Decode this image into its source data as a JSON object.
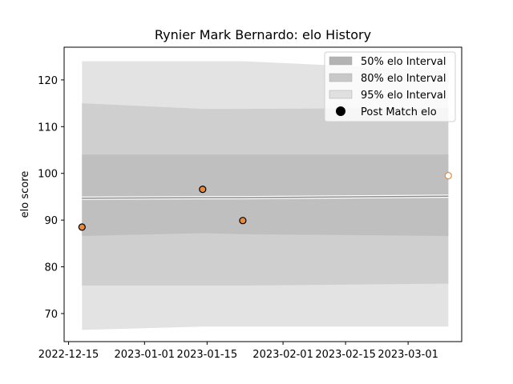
{
  "chart_data": {
    "type": "line",
    "title": "Rynier Mark Bernardo: elo History",
    "xlabel": "",
    "ylabel": "elo score",
    "x_ticks": [
      "2022-12-15",
      "2023-01-01",
      "2023-01-15",
      "2023-02-01",
      "2023-02-15",
      "2023-03-01"
    ],
    "y_ticks": [
      70,
      80,
      90,
      100,
      110,
      120
    ],
    "xlim": [
      "2022-12-14",
      "2023-03-13"
    ],
    "ylim": [
      64,
      127
    ],
    "grid": false,
    "legend_position": "top-right",
    "band_dates": [
      "2022-12-18",
      "2023-01-14",
      "2023-01-23",
      "2023-03-10"
    ],
    "median_line": [
      94.7,
      94.8,
      94.8,
      95.1
    ],
    "intervals": [
      {
        "name": "95% elo Interval",
        "color": "#e3e3e3",
        "lower": [
          66.5,
          67.2,
          67.2,
          67.2
        ],
        "upper": [
          124.0,
          124.0,
          124.0,
          122.0
        ]
      },
      {
        "name": "80% elo Interval",
        "color": "#cfcfcf",
        "lower": [
          76.0,
          76.0,
          76.0,
          76.4
        ],
        "upper": [
          115.0,
          113.8,
          113.8,
          114.0
        ]
      },
      {
        "name": "50% elo Interval",
        "color": "#bfbfbf",
        "lower": [
          86.6,
          87.2,
          87.0,
          86.6
        ],
        "upper": [
          104.0,
          104.0,
          104.0,
          104.0
        ]
      }
    ],
    "series": [
      {
        "name": "Post Match elo",
        "color": "#e98a3a",
        "points": [
          {
            "date": "2022-12-18",
            "value": 88.5
          },
          {
            "date": "2023-01-14",
            "value": 96.6
          },
          {
            "date": "2023-01-23",
            "value": 89.9
          },
          {
            "date": "2023-03-10",
            "value": 99.5,
            "hollow": true
          }
        ]
      }
    ],
    "legend": [
      {
        "label": "50% elo Interval",
        "kind": "patch",
        "color": "#b3b3b3"
      },
      {
        "label": "80% elo Interval",
        "kind": "patch",
        "color": "#c8c8c8"
      },
      {
        "label": "95% elo Interval",
        "kind": "patch",
        "color": "#e0e0e0"
      },
      {
        "label": "Post Match elo",
        "kind": "marker",
        "color": "#000000"
      }
    ]
  }
}
